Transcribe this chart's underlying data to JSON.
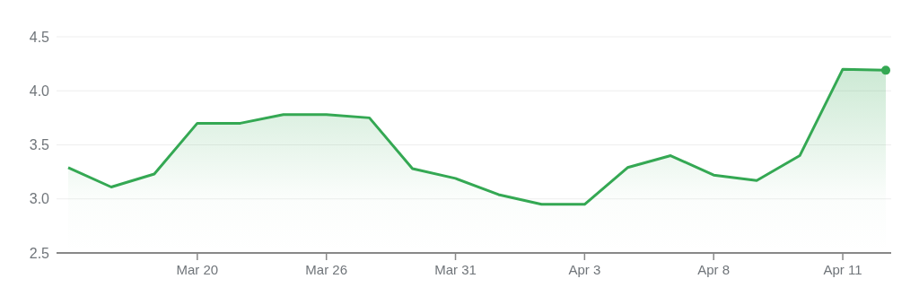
{
  "chart_data": {
    "type": "area",
    "categories": [
      null,
      null,
      null,
      "Mar 20",
      null,
      null,
      "Mar 26",
      null,
      null,
      "Mar 31",
      null,
      null,
      "Apr 3",
      null,
      null,
      "Apr 8",
      null,
      null,
      "Apr 11",
      null
    ],
    "series": [
      {
        "color": "#34a853",
        "values": [
          3.29,
          3.11,
          3.23,
          3.7,
          3.7,
          3.78,
          3.78,
          3.75,
          3.28,
          3.19,
          3.04,
          2.95,
          2.95,
          3.29,
          3.4,
          3.22,
          3.17,
          3.4,
          4.2,
          4.19
        ]
      }
    ],
    "ylim": [
      2.5,
      4.5
    ],
    "yticks": [
      2.5,
      {
        "value": 3,
        "label": "3.0"
      },
      3.5,
      {
        "value": 4,
        "label": "4.0"
      },
      4.5
    ],
    "grid": "y"
  }
}
